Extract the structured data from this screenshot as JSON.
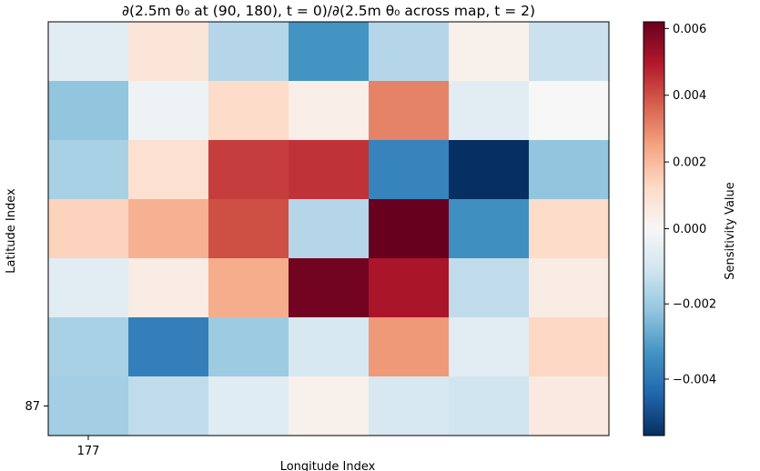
{
  "chart_data": {
    "type": "heatmap",
    "title": "∂(2.5m θ₀ at (90, 180), t = 0)/∂(2.5m θ₀ across map, t = 2)",
    "xlabel": "Longitude Index",
    "ylabel": "Latitude Index",
    "x_tick_labels": [
      "177"
    ],
    "y_tick_labels": [
      "87"
    ],
    "colorbar": {
      "label": "Sensitivity Value",
      "colormap": "RdBu_r",
      "vmin": -0.0055,
      "vmax": 0.0062,
      "ticks": [
        -0.004,
        -0.002,
        0.0,
        0.002,
        0.004,
        0.006
      ],
      "tick_labels": [
        "−0.004",
        "−0.002",
        "0.000",
        "0.002",
        "0.004",
        "0.006"
      ]
    },
    "grid": false,
    "rows": 7,
    "cols": 7,
    "values": [
      [
        -0.0006,
        0.0008,
        -0.0016,
        -0.0033,
        -0.0016,
        0.0003,
        -0.0012
      ],
      [
        -0.0022,
        -0.0003,
        0.0012,
        0.0004,
        0.0031,
        -0.0006,
        0.0
      ],
      [
        -0.0018,
        0.001,
        0.0043,
        0.0045,
        -0.0037,
        -0.0055,
        -0.0022
      ],
      [
        0.0014,
        0.0022,
        0.004,
        -0.0016,
        0.0062,
        -0.0034,
        0.0012
      ],
      [
        -0.0006,
        0.0005,
        0.0023,
        0.006,
        0.0051,
        -0.0014,
        0.0005
      ],
      [
        -0.0018,
        -0.0038,
        -0.002,
        -0.0009,
        0.0027,
        -0.0006,
        0.0013
      ],
      [
        -0.0019,
        -0.0014,
        -0.0007,
        0.0003,
        -0.0009,
        -0.0011,
        0.0006
      ]
    ]
  }
}
